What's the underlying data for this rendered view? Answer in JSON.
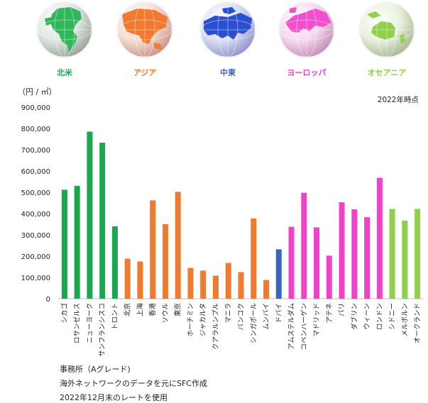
{
  "regions": [
    {
      "label": "北米",
      "color": "#1aa750",
      "globe_color": "#2fb85a"
    },
    {
      "label": "アジア",
      "color": "#ee7b30",
      "globe_color": "#f07a30"
    },
    {
      "label": "中東",
      "color": "#3567c2",
      "globe_color": "#2a4fd0"
    },
    {
      "label": "ヨーロッパ",
      "color": "#f042c9",
      "globe_color": "#f24fd0"
    },
    {
      "label": "オセアニア",
      "color": "#8fcf4a",
      "globe_color": "#8fd14b"
    }
  ],
  "footnotes": [
    "事務所（Aグレード)",
    "海外ネットワークのデータを元にSFC作成",
    "2022年12月末のレートを使用"
  ],
  "chart_data": {
    "type": "bar",
    "ylabel": "（円 / ㎡）",
    "annotation": "2022年時点",
    "ylim": [
      0,
      900000
    ],
    "yticks": [
      "0",
      "100,000",
      "200,000",
      "300,000",
      "400,000",
      "500,000",
      "600,000",
      "700,000",
      "800,000",
      "900,000"
    ],
    "categories": [
      "シカゴ",
      "ロサンゼルス",
      "ニューヨーク",
      "サンフランシスコ",
      "トロント",
      "北京",
      "上海",
      "香港",
      "ソウル",
      "東京",
      "ホーチミン",
      "ジャカルタ",
      "クアラルンプル",
      "マニラ",
      "バンコク",
      "シンガポール",
      "ムンバイ",
      "ドバイ",
      "アムステルダム",
      "コペンハーゲン",
      "マドリッド",
      "アテネ",
      "パリ",
      "ダブリン",
      "ウィーン",
      "ロンドン",
      "シドニー",
      "メルボルン",
      "オークランド"
    ],
    "values": [
      512000,
      530000,
      785000,
      733000,
      340000,
      188000,
      175000,
      462000,
      350000,
      502000,
      145000,
      132000,
      108000,
      168000,
      125000,
      377000,
      88000,
      232000,
      338000,
      498000,
      335000,
      202000,
      453000,
      420000,
      383000,
      568000,
      422000,
      367000,
      422000
    ],
    "bar_colors": [
      "#1aa750",
      "#1aa750",
      "#1aa750",
      "#1aa750",
      "#1aa750",
      "#ee7b30",
      "#ee7b30",
      "#ee7b30",
      "#ee7b30",
      "#ee7b30",
      "#ee7b30",
      "#ee7b30",
      "#ee7b30",
      "#ee7b30",
      "#ee7b30",
      "#ee7b30",
      "#ee7b30",
      "#3567c2",
      "#f042c9",
      "#f042c9",
      "#f042c9",
      "#f042c9",
      "#f042c9",
      "#f042c9",
      "#f042c9",
      "#f042c9",
      "#8fcf4a",
      "#8fcf4a",
      "#8fcf4a"
    ],
    "grid": false
  }
}
